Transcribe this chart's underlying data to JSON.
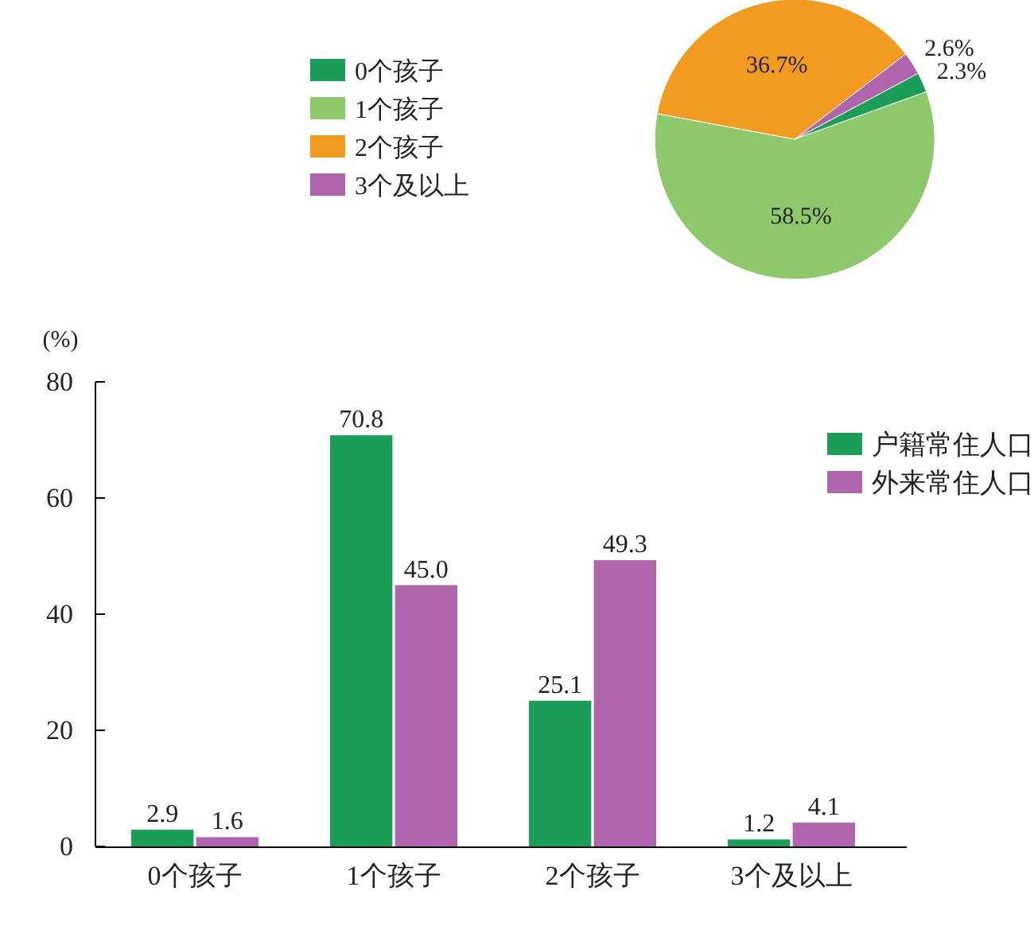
{
  "chart_data": [
    {
      "type": "pie",
      "categories": [
        "0个孩子",
        "1个孩子",
        "2个孩子",
        "3个及以上"
      ],
      "values": [
        2.3,
        58.5,
        36.7,
        2.6
      ],
      "colors": [
        "#1a9e58",
        "#8cc96a",
        "#f39a21",
        "#b064ae"
      ],
      "value_labels": [
        "2.3%",
        "58.5%",
        "36.7%",
        "2.6%"
      ],
      "legend": "left"
    },
    {
      "type": "bar",
      "ylabel": "(%)",
      "categories": [
        "0个孩子",
        "1个孩子",
        "2个孩子",
        "3个及以上"
      ],
      "ylim": [
        0,
        80
      ],
      "yticks": [
        0,
        20,
        40,
        60,
        80
      ],
      "legend": "top right",
      "grid": false,
      "series": [
        {
          "name": "户籍常住人口",
          "color": "#1a9e58",
          "values": [
            2.9,
            70.8,
            25.1,
            1.2
          ],
          "value_labels": [
            "2.9",
            "70.8",
            "25.1",
            "1.2"
          ]
        },
        {
          "name": "外来常住人口",
          "color": "#b064ae",
          "values": [
            1.6,
            45.0,
            49.3,
            4.1
          ],
          "value_labels": [
            "1.6",
            "45.0",
            "49.3",
            "4.1"
          ]
        }
      ]
    }
  ]
}
